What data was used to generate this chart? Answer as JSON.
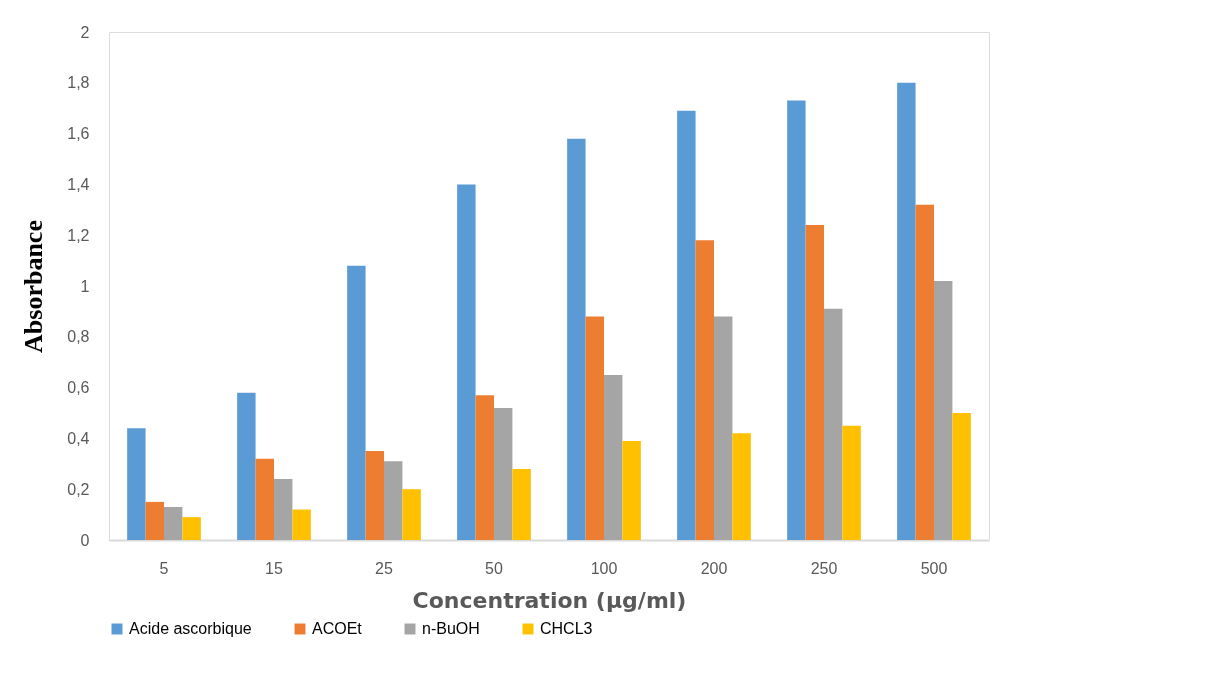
{
  "chart_data": {
    "type": "bar",
    "xlabel": "Concentration (µg/ml)",
    "ylabel": "Absorbance",
    "categories": [
      "5",
      "15",
      "25",
      "50",
      "100",
      "200",
      "250",
      "500"
    ],
    "series": [
      {
        "name": "Acide ascorbique",
        "color": "#5b9bd5",
        "values": [
          0.44,
          0.58,
          1.08,
          1.4,
          1.58,
          1.69,
          1.73,
          1.8
        ]
      },
      {
        "name": "ACOEt",
        "color": "#ed7d31",
        "values": [
          0.15,
          0.32,
          0.35,
          0.57,
          0.88,
          1.18,
          1.24,
          1.32
        ]
      },
      {
        "name": "n-BuOH",
        "color": "#a5a5a5",
        "values": [
          0.13,
          0.24,
          0.31,
          0.52,
          0.65,
          0.88,
          0.91,
          1.02
        ]
      },
      {
        "name": "CHCL3",
        "color": "#ffc000",
        "values": [
          0.09,
          0.12,
          0.2,
          0.28,
          0.39,
          0.42,
          0.45,
          0.5
        ]
      }
    ],
    "ylim": [
      0,
      2
    ],
    "yticks": [
      0,
      {
        "value": 0.2,
        "label": "0,2"
      },
      {
        "value": 0.4,
        "label": "0,4"
      },
      {
        "value": 0.6,
        "label": "0,6"
      },
      {
        "value": 0.8,
        "label": "0,8"
      },
      1,
      {
        "value": 1.2,
        "label": "1,2"
      },
      {
        "value": 1.4,
        "label": "1,4"
      },
      {
        "value": 1.6,
        "label": "1,6"
      },
      {
        "value": 1.8,
        "label": "1,8"
      },
      2
    ],
    "grid": false,
    "legend": "bottom"
  }
}
